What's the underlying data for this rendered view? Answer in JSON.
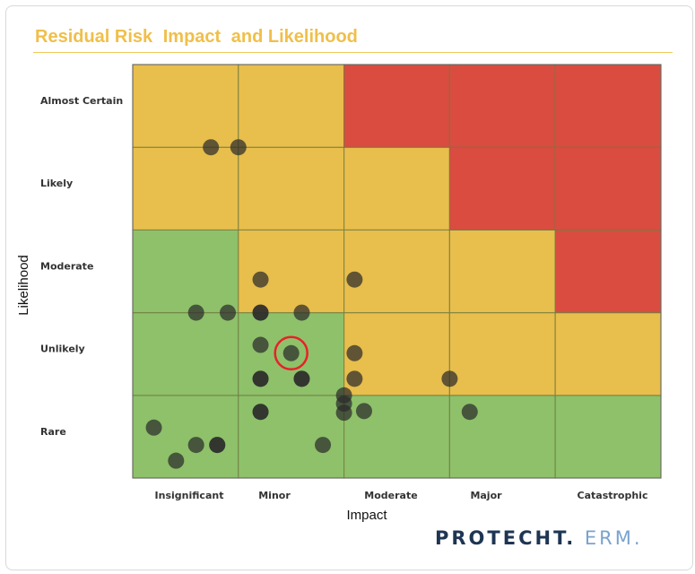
{
  "title_parts": [
    "Residual Risk",
    "Impact",
    "and Likelihood"
  ],
  "logo": {
    "primary": "PROTECHT.",
    "secondary": "ERM."
  },
  "chart_data": {
    "type": "heatmap",
    "xlabel": "Impact",
    "ylabel": "Likelihood",
    "x_categories": [
      "Insignificant",
      "Minor",
      "Moderate",
      "Major",
      "Catastrophic"
    ],
    "y_categories": [
      "Rare",
      "Unlikely",
      "Moderate",
      "Likely",
      "Almost Certain"
    ],
    "colors": {
      "green": "#8ec16a",
      "yellow": "#e8be4c",
      "red": "#da4c40",
      "point": "#2b2b2b",
      "highlight": "#e8202a"
    },
    "cells": [
      [
        "green",
        "green",
        "green",
        "green",
        "green"
      ],
      [
        "green",
        "green",
        "yellow",
        "yellow",
        "yellow"
      ],
      [
        "green",
        "yellow",
        "yellow",
        "yellow",
        "red"
      ],
      [
        "yellow",
        "yellow",
        "yellow",
        "red",
        "red"
      ],
      [
        "yellow",
        "yellow",
        "red",
        "red",
        "red"
      ]
    ],
    "xlim": [
      0,
      5
    ],
    "ylim": [
      0,
      5
    ],
    "points": [
      {
        "x": 0.74,
        "y": 4.0,
        "count": 1
      },
      {
        "x": 1.0,
        "y": 4.0,
        "count": 1
      },
      {
        "x": 1.21,
        "y": 2.4,
        "count": 1
      },
      {
        "x": 2.1,
        "y": 2.4,
        "count": 1
      },
      {
        "x": 0.6,
        "y": 2.0,
        "count": 1
      },
      {
        "x": 0.9,
        "y": 2.0,
        "count": 1
      },
      {
        "x": 1.21,
        "y": 2.0,
        "count": 2
      },
      {
        "x": 1.6,
        "y": 2.0,
        "count": 1
      },
      {
        "x": 1.21,
        "y": 1.61,
        "count": 1
      },
      {
        "x": 1.5,
        "y": 1.51,
        "count": 1,
        "highlighted": true
      },
      {
        "x": 2.1,
        "y": 1.51,
        "count": 1
      },
      {
        "x": 1.21,
        "y": 1.2,
        "count": 2
      },
      {
        "x": 1.6,
        "y": 1.2,
        "count": 2
      },
      {
        "x": 2.1,
        "y": 1.2,
        "count": 1
      },
      {
        "x": 3.0,
        "y": 1.2,
        "count": 1
      },
      {
        "x": 2.0,
        "y": 1.0,
        "count": 1
      },
      {
        "x": 2.0,
        "y": 0.9,
        "count": 1
      },
      {
        "x": 2.0,
        "y": 0.79,
        "count": 1
      },
      {
        "x": 2.19,
        "y": 0.81,
        "count": 1
      },
      {
        "x": 1.21,
        "y": 0.8,
        "count": 2
      },
      {
        "x": 3.19,
        "y": 0.8,
        "count": 1
      },
      {
        "x": 0.2,
        "y": 0.61,
        "count": 1
      },
      {
        "x": 0.6,
        "y": 0.4,
        "count": 1
      },
      {
        "x": 0.8,
        "y": 0.4,
        "count": 2
      },
      {
        "x": 1.8,
        "y": 0.4,
        "count": 1
      },
      {
        "x": 0.41,
        "y": 0.21,
        "count": 1
      }
    ]
  }
}
